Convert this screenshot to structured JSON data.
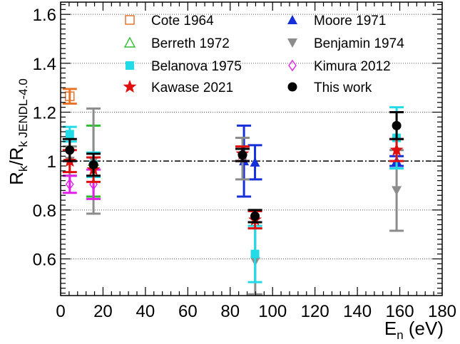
{
  "chart_data": {
    "type": "scatter",
    "xlabel": {
      "main": "E",
      "sub": "n",
      "suffix": " (eV)"
    },
    "ylabel": {
      "main1": "R",
      "sub1": "k",
      "slash": "/R",
      "sub2": "k JENDL-4.0"
    },
    "xlim": [
      0,
      180
    ],
    "ylim": [
      0.45,
      1.65
    ],
    "x_ticks": [
      0,
      20,
      40,
      60,
      80,
      100,
      120,
      140,
      160,
      180
    ],
    "y_ticks": [
      0.6,
      0.8,
      1,
      1.2,
      1.4,
      1.6
    ],
    "x_tick_labels": [
      "0",
      "20",
      "40",
      "60",
      "80",
      "100",
      "120",
      "140",
      "160",
      "180"
    ],
    "y_tick_labels": [
      "0.6",
      "0.8",
      "1",
      "1.2",
      "1.4",
      "1.6"
    ],
    "reference_line": 1.0,
    "grid": "horizontal dotted",
    "legend_position": "top-right",
    "series": [
      {
        "name": "Cote 1964",
        "marker": "open-square",
        "color": "#e8742a",
        "points": [
          {
            "x": 4.3,
            "y": 1.265,
            "err": 0.03
          }
        ]
      },
      {
        "name": "Moore 1971",
        "marker": "filled-triangle-up",
        "color": "#1530d8",
        "points": [
          {
            "x": 86.5,
            "y": 1.0,
            "err": 0.145
          },
          {
            "x": 91.7,
            "y": 0.995,
            "err": 0.07
          },
          {
            "x": 158.5,
            "y": 1.0,
            "err": 0.02
          }
        ]
      },
      {
        "name": "Berreth 1972",
        "marker": "open-triangle-up",
        "color": "#2fbf2f",
        "points": [
          {
            "x": 15.5,
            "y": 1.0,
            "err": 0.145
          }
        ]
      },
      {
        "name": "Benjamin 1974",
        "marker": "filled-triangle-down",
        "color": "#8c8c8c",
        "points": [
          {
            "x": 4.3,
            "y": 1.0,
            "err": 0.06
          },
          {
            "x": 15.5,
            "y": 1.0,
            "err": 0.215
          },
          {
            "x": 85.8,
            "y": 1.01,
            "err": 0.085
          },
          {
            "x": 91.8,
            "y": 0.59,
            "err": 0.135
          },
          {
            "x": 158.5,
            "y": 0.88,
            "err": 0.165
          }
        ]
      },
      {
        "name": "Belanova 1975",
        "marker": "filled-square",
        "color": "#22dbe6",
        "points": [
          {
            "x": 4.3,
            "y": 1.11,
            "err": 0.03
          },
          {
            "x": 15.5,
            "y": 0.985,
            "err": 0.05
          },
          {
            "x": 91.7,
            "y": 0.62,
            "err": 0.115
          },
          {
            "x": 158.5,
            "y": 1.095,
            "err": 0.125
          }
        ]
      },
      {
        "name": "Kimura 2012",
        "marker": "open-diamond",
        "color": "#e020e8",
        "points": [
          {
            "x": 4.3,
            "y": 0.905,
            "err": 0.035
          },
          {
            "x": 15.5,
            "y": 0.905,
            "err": 0.06
          }
        ]
      },
      {
        "name": "Kawase 2021",
        "marker": "star",
        "color": "#e01010",
        "points": [
          {
            "x": 4.3,
            "y": 1.0,
            "err": 0.045
          },
          {
            "x": 15.5,
            "y": 0.965,
            "err": 0.05
          },
          {
            "x": 85.8,
            "y": 1.03,
            "err": 0.03
          },
          {
            "x": 91.7,
            "y": 0.76,
            "err": 0.035
          },
          {
            "x": 158.5,
            "y": 1.045,
            "err": 0.045
          }
        ]
      },
      {
        "name": "This work",
        "marker": "filled-circle",
        "color": "#000000",
        "points": [
          {
            "x": 4.3,
            "y": 1.045,
            "err": 0.045
          },
          {
            "x": 15.5,
            "y": 0.985,
            "err": 0.045
          },
          {
            "x": 85.8,
            "y": 1.025,
            "err": 0.025
          },
          {
            "x": 91.7,
            "y": 0.775,
            "err": 0.025
          },
          {
            "x": 158.5,
            "y": 1.145,
            "err": 0.055
          }
        ]
      }
    ]
  }
}
